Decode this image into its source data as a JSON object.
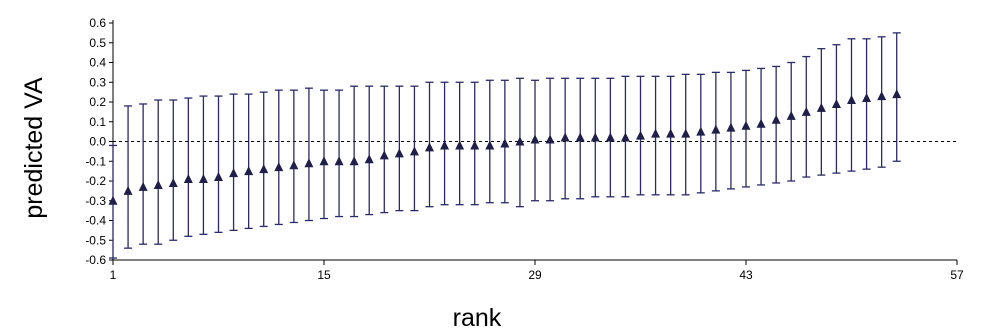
{
  "chart_data": {
    "type": "scatter",
    "title": "",
    "xlabel": "rank",
    "ylabel": "predicted VA",
    "xlim": [
      1,
      57
    ],
    "ylim": [
      -0.6,
      0.6
    ],
    "xticks": [
      1,
      15,
      29,
      43,
      57
    ],
    "yticks": [
      0.6,
      0.5,
      0.4,
      0.3,
      0.2,
      0.1,
      0.0,
      -0.1,
      -0.2,
      -0.3,
      -0.4,
      -0.5,
      -0.6
    ],
    "xtick_labels": [
      "1",
      "15",
      "29",
      "43",
      "57"
    ],
    "ytick_labels": [
      "0.6",
      "0.5",
      "0.4",
      "0.3",
      "0.2",
      "0.1",
      "0.0",
      "-0.1",
      "-0.2",
      "-0.3",
      "-0.4",
      "-0.5",
      "-0.6"
    ],
    "reference_line": {
      "y": 0.0,
      "style": "dashed"
    },
    "grid": false,
    "series": [
      {
        "marker": "triangle",
        "x": [
          1,
          2,
          3,
          4,
          5,
          6,
          7,
          8,
          9,
          10,
          11,
          12,
          13,
          14,
          15,
          16,
          17,
          18,
          19,
          20,
          21,
          22,
          23,
          24,
          25,
          26,
          27,
          28,
          29,
          30,
          31,
          32,
          33,
          34,
          35,
          36,
          37,
          38,
          39,
          40,
          41,
          42,
          43,
          44,
          45,
          46,
          47,
          48,
          49,
          50,
          51,
          52,
          53
        ],
        "y": [
          -0.3,
          -0.25,
          -0.23,
          -0.22,
          -0.21,
          -0.19,
          -0.19,
          -0.18,
          -0.16,
          -0.15,
          -0.14,
          -0.13,
          -0.12,
          -0.11,
          -0.1,
          -0.1,
          -0.1,
          -0.09,
          -0.07,
          -0.06,
          -0.05,
          -0.03,
          -0.02,
          -0.02,
          -0.02,
          -0.02,
          -0.01,
          0.0,
          0.01,
          0.01,
          0.02,
          0.02,
          0.02,
          0.02,
          0.02,
          0.03,
          0.04,
          0.04,
          0.04,
          0.05,
          0.06,
          0.07,
          0.08,
          0.09,
          0.11,
          0.13,
          0.15,
          0.17,
          0.19,
          0.21,
          0.22,
          0.23,
          0.24
        ],
        "lower": [
          -0.59,
          -0.54,
          -0.52,
          -0.52,
          -0.5,
          -0.48,
          -0.47,
          -0.46,
          -0.45,
          -0.44,
          -0.43,
          -0.42,
          -0.41,
          -0.4,
          -0.39,
          -0.38,
          -0.38,
          -0.37,
          -0.36,
          -0.35,
          -0.35,
          -0.33,
          -0.32,
          -0.32,
          -0.32,
          -0.31,
          -0.31,
          -0.33,
          -0.3,
          -0.3,
          -0.29,
          -0.29,
          -0.28,
          -0.28,
          -0.28,
          -0.27,
          -0.27,
          -0.27,
          -0.27,
          -0.26,
          -0.25,
          -0.24,
          -0.23,
          -0.22,
          -0.21,
          -0.2,
          -0.18,
          -0.17,
          -0.16,
          -0.15,
          -0.14,
          -0.13,
          -0.1
        ],
        "upper": [
          -0.02,
          0.18,
          0.19,
          0.21,
          0.21,
          0.22,
          0.23,
          0.23,
          0.24,
          0.24,
          0.25,
          0.26,
          0.26,
          0.27,
          0.26,
          0.26,
          0.28,
          0.28,
          0.28,
          0.28,
          0.28,
          0.3,
          0.3,
          0.3,
          0.3,
          0.31,
          0.31,
          0.32,
          0.31,
          0.32,
          0.32,
          0.32,
          0.32,
          0.32,
          0.33,
          0.33,
          0.33,
          0.33,
          0.34,
          0.34,
          0.35,
          0.35,
          0.36,
          0.37,
          0.38,
          0.4,
          0.43,
          0.47,
          0.49,
          0.52,
          0.52,
          0.53,
          0.55
        ]
      }
    ]
  },
  "colors": {
    "marker": "#1f1f4a",
    "errorbar": "#2a2a6a",
    "axis": "#000000"
  }
}
